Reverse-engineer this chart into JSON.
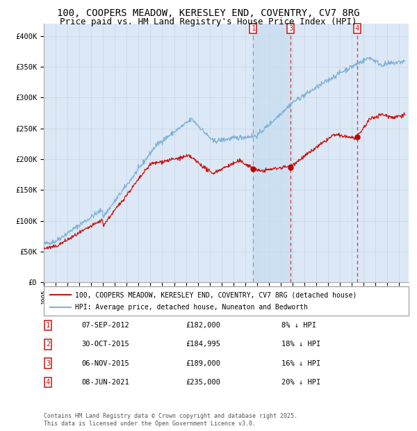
{
  "title1": "100, COOPERS MEADOW, KERESLEY END, COVENTRY, CV7 8RG",
  "title2": "Price paid vs. HM Land Registry's House Price Index (HPI)",
  "ylim": [
    0,
    420000
  ],
  "xlim_start": 1995.0,
  "xlim_end": 2025.8,
  "yticks": [
    0,
    50000,
    100000,
    150000,
    200000,
    250000,
    300000,
    350000,
    400000
  ],
  "ytick_labels": [
    "£0",
    "£50K",
    "£100K",
    "£150K",
    "£200K",
    "£250K",
    "£300K",
    "£350K",
    "£400K"
  ],
  "xtick_years": [
    1995,
    1996,
    1997,
    1998,
    1999,
    2000,
    2001,
    2002,
    2003,
    2004,
    2005,
    2006,
    2007,
    2008,
    2009,
    2010,
    2011,
    2012,
    2013,
    2014,
    2015,
    2016,
    2017,
    2018,
    2019,
    2020,
    2021,
    2022,
    2023,
    2024,
    2025
  ],
  "grid_color": "#c8d8e8",
  "plot_bg_color": "#dce8f5",
  "legend_label_red": "100, COOPERS MEADOW, KERESLEY END, COVENTRY, CV7 8RG (detached house)",
  "legend_label_blue": "HPI: Average price, detached house, Nuneaton and Bedworth",
  "sale_events": [
    {
      "num": 1,
      "date_num": 2012.68,
      "price": 182000,
      "label": "07-SEP-2012",
      "price_str": "£182,000",
      "pct": "8%"
    },
    {
      "num": 2,
      "date_num": 2015.83,
      "price": 184995,
      "label": "30-OCT-2015",
      "price_str": "£184,995",
      "pct": "18%"
    },
    {
      "num": 3,
      "date_num": 2015.85,
      "price": 189000,
      "label": "06-NOV-2015",
      "price_str": "£189,000",
      "pct": "16%"
    },
    {
      "num": 4,
      "date_num": 2021.44,
      "price": 235000,
      "label": "08-JUN-2021",
      "price_str": "£235,000",
      "pct": "20%"
    }
  ],
  "vline1_x": 2012.68,
  "vline3_x": 2015.85,
  "vline4_x": 2021.44,
  "shaded_start": 2012.68,
  "shaded_end": 2015.85,
  "footer": "Contains HM Land Registry data © Crown copyright and database right 2025.\nThis data is licensed under the Open Government Licence v3.0.",
  "events_shown_in_chart": [
    1,
    3,
    4
  ]
}
